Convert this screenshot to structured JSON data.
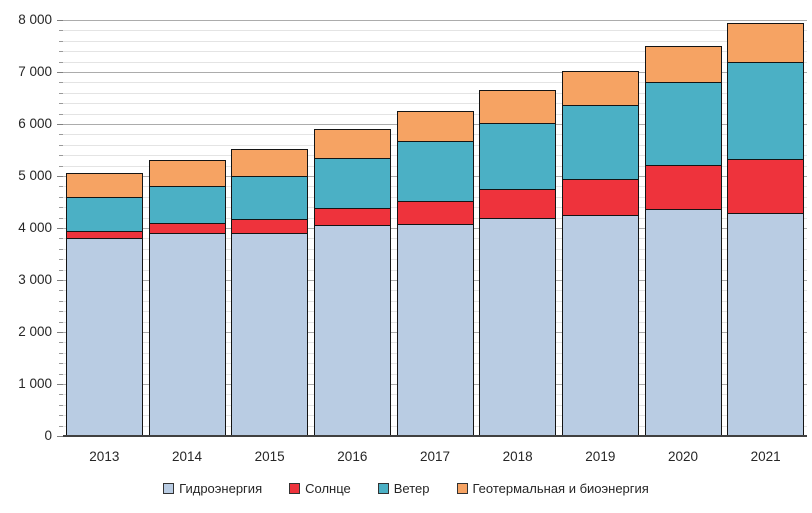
{
  "chart_data": {
    "type": "bar",
    "subtype": "stacked",
    "title": "",
    "xlabel": "",
    "ylabel": "",
    "categories": [
      "2013",
      "2014",
      "2015",
      "2016",
      "2017",
      "2018",
      "2019",
      "2020",
      "2021"
    ],
    "series": [
      {
        "key": "hydro",
        "name": "Гидроэнергия",
        "color": "#b9cce3",
        "values": [
          3795,
          3885,
          3891,
          4036,
          4065,
          4171,
          4222,
          4346,
          4274
        ]
      },
      {
        "key": "solar",
        "name": "Солнце",
        "color": "#ee333c",
        "values": [
          132,
          190,
          256,
          328,
          442,
          562,
          699,
          846,
          1033
        ]
      },
      {
        "key": "wind",
        "name": "Ветер",
        "color": "#4bb0c5",
        "values": [
          646,
          717,
          831,
          959,
          1140,
          1270,
          1420,
          1596,
          1862
        ]
      },
      {
        "key": "geothermal_bioenergy",
        "name": "Геотермальная и биоэнергия",
        "color": "#f6a363",
        "values": [
          461,
          494,
          527,
          557,
          593,
          625,
          652,
          700,
          760
        ]
      }
    ],
    "totals": [
      5034,
      5286,
      5505,
      5880,
      6240,
      6628,
      6993,
      7488,
      7929
    ],
    "y_axis": {
      "min": 0,
      "max": 8000,
      "major_step": 1000,
      "minor_step": 200,
      "tick_labels": [
        "0",
        "1 000",
        "2 000",
        "3 000",
        "4 000",
        "5 000",
        "6 000",
        "7 000",
        "8 000"
      ]
    },
    "legend_position": "bottom",
    "grid": {
      "minor": true,
      "major": true
    },
    "colors": {
      "grid_minor": "#e4e4e4",
      "grid_major": "#acacac",
      "axis_line": "#404040",
      "text": "#262626",
      "bar_border": "#141414",
      "background": "#ffffff"
    }
  }
}
